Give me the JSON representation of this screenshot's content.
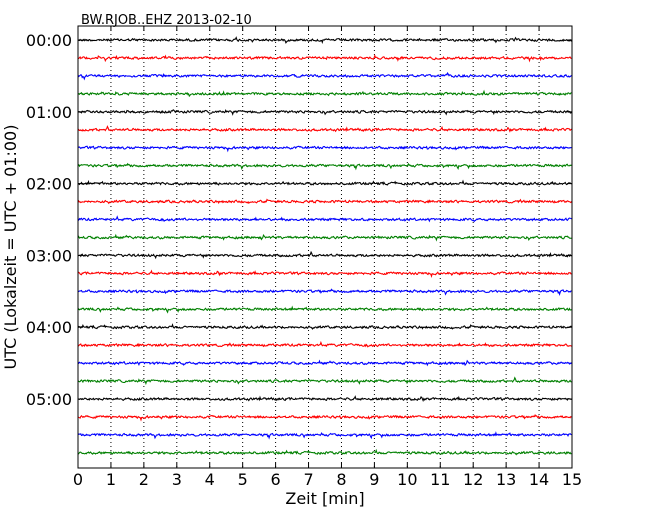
{
  "chart_data": {
    "type": "line",
    "title": "BW.RJOB..EHZ 2013-02-10",
    "xlabel": "Zeit  [min]",
    "ylabel": "UTC (Lokalzeit = UTC + 01:00)",
    "xlim": [
      0,
      15
    ],
    "x_ticks": [
      "0",
      "1",
      "2",
      "3",
      "4",
      "5",
      "6",
      "7",
      "8",
      "9",
      "10",
      "11",
      "12",
      "13",
      "14",
      "15"
    ],
    "y_tick_labels": [
      "00:00",
      "01:00",
      "02:00",
      "03:00",
      "04:00",
      "05:00"
    ],
    "grid": "vertical dotted",
    "trace_colors": [
      "#000000",
      "#ff0000",
      "#0000ff",
      "#008000"
    ],
    "traces": [
      {
        "start": "00:00",
        "color": "#000000"
      },
      {
        "start": "00:15",
        "color": "#ff0000"
      },
      {
        "start": "00:30",
        "color": "#0000ff"
      },
      {
        "start": "00:45",
        "color": "#008000"
      },
      {
        "start": "01:00",
        "color": "#000000"
      },
      {
        "start": "01:15",
        "color": "#ff0000"
      },
      {
        "start": "01:30",
        "color": "#0000ff"
      },
      {
        "start": "01:45",
        "color": "#008000"
      },
      {
        "start": "02:00",
        "color": "#000000"
      },
      {
        "start": "02:15",
        "color": "#ff0000"
      },
      {
        "start": "02:30",
        "color": "#0000ff"
      },
      {
        "start": "02:45",
        "color": "#008000"
      },
      {
        "start": "03:00",
        "color": "#000000"
      },
      {
        "start": "03:15",
        "color": "#ff0000"
      },
      {
        "start": "03:30",
        "color": "#0000ff"
      },
      {
        "start": "03:45",
        "color": "#008000"
      },
      {
        "start": "04:00",
        "color": "#000000"
      },
      {
        "start": "04:15",
        "color": "#ff0000"
      },
      {
        "start": "04:30",
        "color": "#0000ff"
      },
      {
        "start": "04:45",
        "color": "#008000"
      },
      {
        "start": "05:00",
        "color": "#000000"
      },
      {
        "start": "05:15",
        "color": "#ff0000"
      },
      {
        "start": "05:30",
        "color": "#0000ff"
      },
      {
        "start": "05:45",
        "color": "#008000"
      }
    ]
  }
}
